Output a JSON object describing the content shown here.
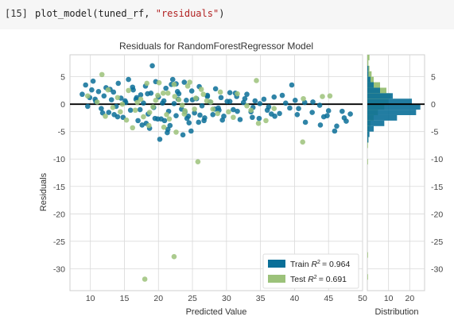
{
  "cell": {
    "prompt": "[15]",
    "code_func": "plot_model(tuned_rf, ",
    "code_arg": "\"residuals\"",
    "code_close": ")"
  },
  "colors": {
    "train": "#0a6f98",
    "test": "#9cc27a",
    "zero_line": "#000000",
    "grid": "#d9d9d9"
  },
  "chart_data": {
    "type": "scatter",
    "title": "Residuals for RandomForestRegressor Model",
    "xlabel": "Predicted Value",
    "ylabel": "Residuals",
    "xlim": [
      7,
      50
    ],
    "ylim": [
      -34,
      9
    ],
    "xticks": [
      10,
      15,
      20,
      25,
      30,
      35,
      40,
      45,
      50
    ],
    "yticks": [
      5,
      0,
      -5,
      -10,
      -15,
      -20,
      -25,
      -30
    ],
    "grid": true,
    "legend": {
      "placement": "lower-right",
      "entries": [
        {
          "label_prefix": "Train ",
          "r2_text": "= 0.964"
        },
        {
          "label_prefix": "Test ",
          "r2_text": "= 0.691"
        }
      ]
    },
    "hist": {
      "xlabel": "Distribution",
      "xticks": [
        10,
        20
      ],
      "xlim": [
        0,
        27
      ]
    },
    "series": [
      {
        "name": "Train",
        "x": [
          8.8,
          9.3,
          9.9,
          10.4,
          10.8,
          11.2,
          11.6,
          12.0,
          12.3,
          12.7,
          13.1,
          13.4,
          13.8,
          14.1,
          14.5,
          14.8,
          15.2,
          15.6,
          15.9,
          16.3,
          16.7,
          17.0,
          17.4,
          17.8,
          18.1,
          18.5,
          18.9,
          19.3,
          19.6,
          20.0,
          20.4,
          20.8,
          21.1,
          21.5,
          21.9,
          22.3,
          22.6,
          23.0,
          23.4,
          23.8,
          24.1,
          24.5,
          24.9,
          25.3,
          25.6,
          26.0,
          26.4,
          26.8,
          27.2,
          27.6,
          28.0,
          28.4,
          28.8,
          29.2,
          29.6,
          30.1,
          30.5,
          31.0,
          31.5,
          32.0,
          32.5,
          33.0,
          33.6,
          34.2,
          34.8,
          35.5,
          36.2,
          37.0,
          37.8,
          38.7,
          39.6,
          40.6,
          41.6,
          42.7,
          43.8,
          45.0,
          46.2,
          47.3,
          48.2,
          9.6,
          10.7,
          11.8,
          12.9,
          14.0,
          15.1,
          16.2,
          17.3,
          18.4,
          19.5,
          20.6,
          21.7,
          22.8,
          23.9,
          25.0,
          26.1,
          27.2,
          28.3,
          29.4,
          30.5,
          31.6,
          32.7,
          33.8,
          34.9,
          36.0,
          37.1,
          38.2,
          39.3,
          40.4,
          41.5,
          42.6,
          43.7,
          44.8,
          45.9,
          47.0,
          10.2,
          13.5,
          16.8,
          18.2,
          19.9,
          21.4,
          22.9,
          24.4,
          26.7,
          28.9,
          31.3,
          33.9,
          36.6,
          40.1,
          44.3,
          47.6,
          17.6,
          18.7,
          20.2,
          21.3,
          22.1,
          23.6,
          24.8,
          25.9,
          19.1,
          20.9,
          22.6,
          24.2
        ],
        "y": [
          1.8,
          3.5,
          1.2,
          4.2,
          0.5,
          2.3,
          -0.8,
          1.5,
          3.0,
          -1.5,
          0.8,
          2.2,
          -0.4,
          3.8,
          1.1,
          -2.4,
          0.3,
          4.5,
          -1.1,
          2.6,
          0.9,
          -3.0,
          1.7,
          0.2,
          3.3,
          -1.8,
          2.0,
          -0.6,
          4.1,
          1.3,
          -2.7,
          0.6,
          2.9,
          -1.3,
          3.6,
          0.1,
          -2.1,
          1.9,
          -0.9,
          4.0,
          0.7,
          -3.4,
          2.4,
          -1.6,
          1.0,
          3.2,
          -0.3,
          -2.5,
          1.6,
          0.4,
          -1.9,
          2.8,
          -0.7,
          1.2,
          -2.2,
          0.5,
          2.1,
          -1.0,
          1.4,
          -2.8,
          0.3,
          1.8,
          -1.4,
          0.6,
          -2.6,
          0.9,
          -0.5,
          1.3,
          -1.7,
          0.2,
          3.5,
          -0.8,
          -3.3,
          0.4,
          -3.8,
          -1.2,
          -4.0,
          -2.5,
          -1.8,
          -0.4,
          0.9,
          -1.6,
          2.7,
          -2.3,
          0.6,
          3.1,
          -1.0,
          1.9,
          -2.6,
          0.2,
          -3.9,
          2.3,
          -1.4,
          0.8,
          -2.0,
          1.4,
          -0.9,
          -2.9,
          0.5,
          -1.3,
          1.0,
          -2.4,
          0.1,
          -1.1,
          -2.2,
          1.6,
          -0.7,
          -1.9,
          0.3,
          -1.5,
          -0.2,
          -2.1,
          -4.9,
          -1.3,
          2.6,
          -1.9,
          1.2,
          -3.5,
          -2.7,
          -4.6,
          0.9,
          -2.2,
          -3.0,
          -1.1,
          2.0,
          -0.6,
          -1.8,
          0.7,
          -2.3,
          -3.1,
          -3.8,
          -4.4,
          -6.4,
          -5.2,
          4.5,
          -5.6,
          -4.9,
          -3.3,
          7.0,
          -3.0,
          3.7,
          -2.6
        ]
      },
      {
        "name": "Test",
        "x": [
          9.6,
          11.0,
          11.7,
          12.2,
          14.0,
          14.7,
          15.6,
          16.6,
          17.4,
          18.3,
          19.2,
          19.9,
          20.7,
          21.6,
          22.3,
          23.0,
          23.8,
          24.6,
          25.5,
          26.3,
          27.1,
          28.0,
          29.1,
          30.3,
          31.6,
          33.0,
          34.4,
          35.8,
          37.0,
          41.3,
          45.2,
          13.3,
          15.3,
          16.9,
          18.7,
          20.1,
          21.2,
          22.4,
          23.5,
          24.3,
          25.3,
          26.6,
          28.7,
          31.0,
          33.6,
          12.6,
          14.4,
          17.8,
          19.6,
          21.4,
          23.9,
          27.7,
          34.7,
          16.2,
          18.6,
          20.8,
          22.6,
          25.8,
          22.3,
          18.0,
          41.2,
          44.1
        ],
        "y": [
          1.5,
          0.4,
          5.4,
          -2.2,
          1.2,
          0.0,
          2.5,
          -1.1,
          0.9,
          3.8,
          -0.5,
          1.6,
          2.0,
          -2.7,
          3.6,
          0.8,
          -1.8,
          4.0,
          1.1,
          2.7,
          0.6,
          -0.9,
          2.2,
          -1.4,
          1.9,
          -0.3,
          4.3,
          -3.0,
          -0.8,
          1.0,
          1.5,
          -0.6,
          -2.9,
          0.3,
          -1.5,
          3.9,
          -1.9,
          1.4,
          -0.2,
          3.3,
          -0.9,
          1.8,
          -1.7,
          -2.4,
          -1.1,
          2.6,
          -1.4,
          -2.3,
          0.7,
          2.0,
          -1.2,
          0.4,
          -3.5,
          -4.3,
          -3.9,
          -4.2,
          -5.1,
          -10.5,
          -27.8,
          -31.9,
          -6.9,
          1.4
        ]
      }
    ],
    "hist_bins": [
      {
        "y": 8.5,
        "train": 0.0,
        "test": 1.0
      },
      {
        "y": 7.5,
        "train": 0.0,
        "test": 0.5
      },
      {
        "y": 6.5,
        "train": 0.5,
        "test": 1.0
      },
      {
        "y": 5.5,
        "train": 0.5,
        "test": 2.0
      },
      {
        "y": 4.5,
        "train": 1.5,
        "test": 3.0
      },
      {
        "y": 3.5,
        "train": 3.0,
        "test": 6.0
      },
      {
        "y": 2.5,
        "train": 6.0,
        "test": 9.0
      },
      {
        "y": 1.5,
        "train": 12.0,
        "test": 11.0
      },
      {
        "y": 0.5,
        "train": 21.0,
        "test": 10.0
      },
      {
        "y": -0.5,
        "train": 25.0,
        "test": 8.0
      },
      {
        "y": -1.5,
        "train": 23.0,
        "test": 5.0
      },
      {
        "y": -2.5,
        "train": 14.0,
        "test": 3.0
      },
      {
        "y": -3.5,
        "train": 8.0,
        "test": 1.5
      },
      {
        "y": -4.5,
        "train": 3.0,
        "test": 1.0
      },
      {
        "y": -5.5,
        "train": 1.0,
        "test": 0.5
      },
      {
        "y": -6.5,
        "train": 0.5,
        "test": 0.5
      },
      {
        "y": -7.5,
        "train": 0.0,
        "test": 0.3
      },
      {
        "y": -10.5,
        "train": 0.0,
        "test": 0.3
      },
      {
        "y": -27.5,
        "train": 0.0,
        "test": 0.3
      },
      {
        "y": -31.5,
        "train": 0.0,
        "test": 0.3
      }
    ]
  }
}
